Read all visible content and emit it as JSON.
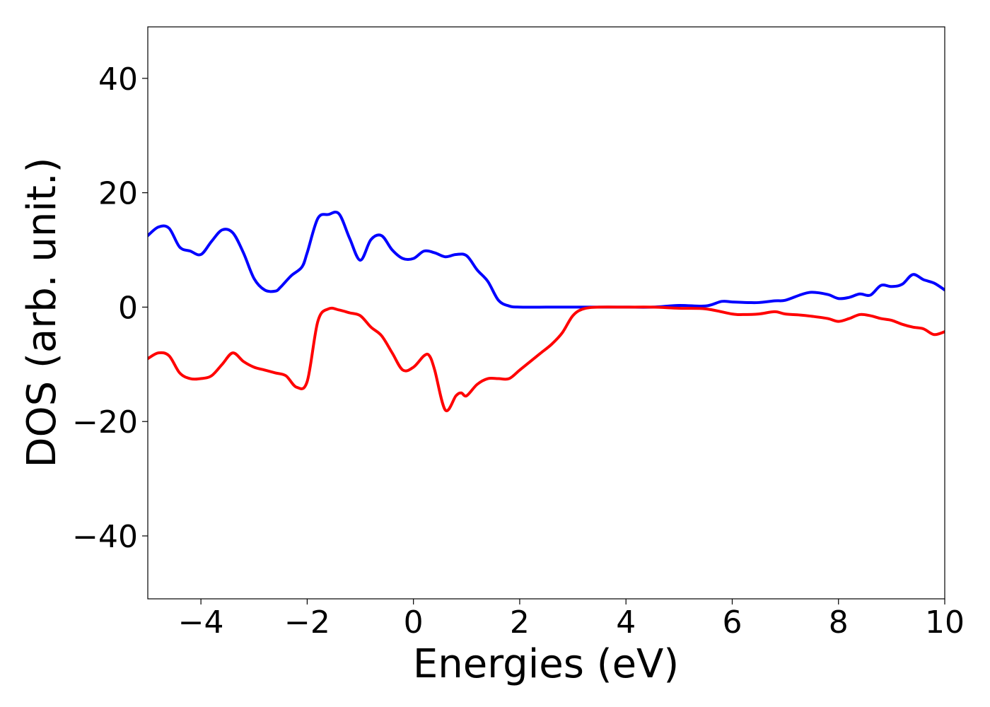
{
  "chart_data": {
    "type": "line",
    "title": "",
    "xlabel": "Energies (eV)",
    "ylabel": "DOS (arb. unit.)",
    "xlim": [
      -5,
      10
    ],
    "ylim": [
      -51,
      49
    ],
    "xticks": [
      -4,
      -2,
      0,
      2,
      4,
      6,
      8,
      10
    ],
    "xtick_labels": [
      "−4",
      "−2",
      "0",
      "2",
      "4",
      "6",
      "8",
      "10"
    ],
    "yticks": [
      -40,
      -20,
      0,
      20,
      40
    ],
    "ytick_labels": [
      "−40",
      "−20",
      "0",
      "20",
      "40"
    ],
    "grid": false,
    "legend": false,
    "series": [
      {
        "color": "#0000ff",
        "x": [
          -5.0,
          -4.8,
          -4.6,
          -4.4,
          -4.2,
          -4.0,
          -3.8,
          -3.6,
          -3.4,
          -3.2,
          -3.0,
          -2.8,
          -2.6,
          -2.5,
          -2.3,
          -2.1,
          -2.0,
          -1.8,
          -1.6,
          -1.4,
          -1.2,
          -1.0,
          -0.8,
          -0.6,
          -0.4,
          -0.2,
          0.0,
          0.2,
          0.4,
          0.6,
          0.8,
          1.0,
          1.2,
          1.4,
          1.6,
          1.8,
          2.0,
          2.5,
          3.0,
          3.5,
          4.0,
          4.5,
          5.0,
          5.5,
          5.8,
          6.0,
          6.3,
          6.5,
          6.8,
          7.0,
          7.3,
          7.5,
          7.8,
          8.0,
          8.2,
          8.4,
          8.6,
          8.8,
          9.0,
          9.2,
          9.4,
          9.6,
          9.8,
          10.0
        ],
        "y": [
          12.5,
          14.0,
          13.8,
          10.5,
          9.8,
          9.2,
          11.5,
          13.5,
          13.0,
          9.5,
          5.0,
          3.0,
          2.8,
          3.5,
          5.5,
          7.0,
          9.5,
          15.5,
          16.2,
          16.3,
          12.0,
          8.2,
          11.8,
          12.5,
          10.0,
          8.5,
          8.5,
          9.8,
          9.5,
          8.8,
          9.2,
          9.0,
          6.5,
          4.5,
          1.2,
          0.2,
          0.0,
          0.0,
          0.0,
          0.0,
          0.0,
          0.0,
          0.3,
          0.2,
          1.0,
          0.9,
          0.8,
          0.8,
          1.1,
          1.2,
          2.2,
          2.6,
          2.2,
          1.5,
          1.7,
          2.3,
          2.1,
          3.8,
          3.6,
          4.0,
          5.7,
          4.8,
          4.2,
          3.0
        ]
      },
      {
        "color": "#ff0000",
        "x": [
          -5.0,
          -4.8,
          -4.6,
          -4.4,
          -4.2,
          -4.0,
          -3.8,
          -3.6,
          -3.4,
          -3.2,
          -3.0,
          -2.8,
          -2.6,
          -2.4,
          -2.2,
          -2.0,
          -1.8,
          -1.6,
          -1.4,
          -1.2,
          -1.0,
          -0.8,
          -0.6,
          -0.4,
          -0.2,
          0.0,
          0.2,
          0.3,
          0.4,
          0.6,
          0.8,
          0.9,
          1.0,
          1.2,
          1.4,
          1.6,
          1.8,
          2.0,
          2.2,
          2.4,
          2.6,
          2.8,
          3.0,
          3.2,
          3.5,
          4.0,
          4.5,
          5.0,
          5.5,
          6.0,
          6.2,
          6.5,
          6.8,
          7.0,
          7.3,
          7.5,
          7.8,
          8.0,
          8.2,
          8.4,
          8.6,
          8.8,
          9.0,
          9.2,
          9.4,
          9.6,
          9.8,
          10.0
        ],
        "y": [
          -9.0,
          -8.0,
          -8.5,
          -11.5,
          -12.5,
          -12.5,
          -12.0,
          -10.0,
          -8.0,
          -9.5,
          -10.5,
          -11.0,
          -11.5,
          -12.0,
          -14.0,
          -13.0,
          -2.5,
          -0.3,
          -0.5,
          -1.0,
          -1.5,
          -3.5,
          -5.0,
          -8.0,
          -11.0,
          -10.5,
          -8.5,
          -8.5,
          -11.0,
          -18.0,
          -15.5,
          -15.0,
          -15.5,
          -13.5,
          -12.5,
          -12.5,
          -12.5,
          -11.0,
          -9.5,
          -8.0,
          -6.5,
          -4.5,
          -1.5,
          -0.3,
          0.0,
          0.0,
          0.0,
          -0.2,
          -0.3,
          -1.2,
          -1.3,
          -1.2,
          -0.8,
          -1.2,
          -1.4,
          -1.6,
          -2.0,
          -2.5,
          -2.0,
          -1.3,
          -1.5,
          -2.0,
          -2.3,
          -3.0,
          -3.5,
          -3.8,
          -4.8,
          -4.3
        ]
      }
    ]
  }
}
